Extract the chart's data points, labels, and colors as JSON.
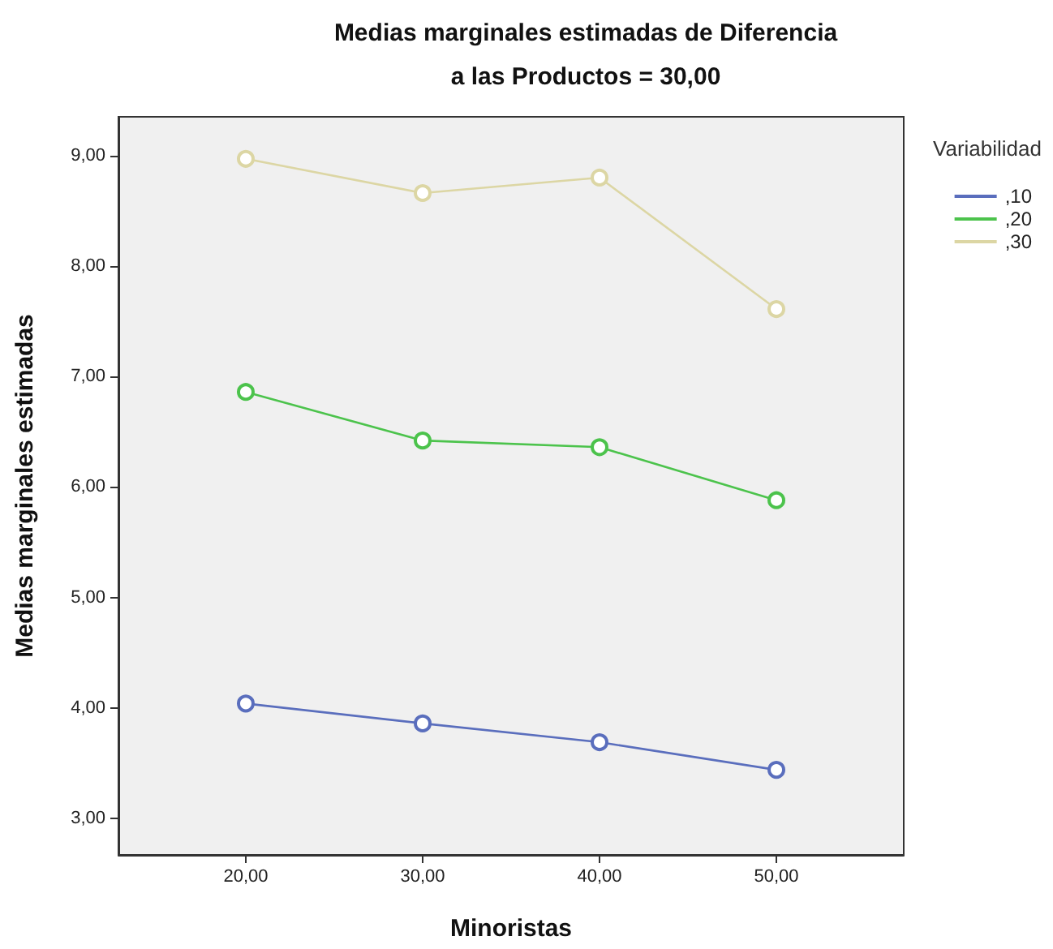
{
  "chart_data": {
    "type": "line",
    "title": "Medias marginales estimadas de Diferencia",
    "subtitle": "a las Productos = 30,00",
    "xlabel": "Minoristas",
    "ylabel": "Medias marginales estimadas",
    "legend_title": "Variabilidad",
    "x": [
      20,
      30,
      40,
      50
    ],
    "series": [
      {
        "name": ",10",
        "color": "#5a6ebd",
        "values": [
          4.04,
          3.86,
          3.69,
          3.44
        ]
      },
      {
        "name": ",20",
        "color": "#4cc34c",
        "values": [
          6.86,
          6.42,
          6.36,
          5.88
        ]
      },
      {
        "name": ",30",
        "color": "#dcd6a4",
        "values": [
          8.97,
          8.66,
          8.8,
          7.61
        ]
      }
    ],
    "xlim": [
      12.8,
      57.2
    ],
    "xticks": [
      {
        "value": 20,
        "label": "20,00"
      },
      {
        "value": 30,
        "label": "30,00"
      },
      {
        "value": 40,
        "label": "40,00"
      },
      {
        "value": 50,
        "label": "50,00"
      }
    ],
    "ylim": [
      2.67,
      9.35
    ],
    "yticks": [
      {
        "value": 3,
        "label": "3,00"
      },
      {
        "value": 4,
        "label": "4,00"
      },
      {
        "value": 5,
        "label": "5,00"
      },
      {
        "value": 6,
        "label": "6,00"
      },
      {
        "value": 7,
        "label": "7,00"
      },
      {
        "value": 8,
        "label": "8,00"
      },
      {
        "value": 9,
        "label": "9,00"
      }
    ],
    "grid": false,
    "legend": "right",
    "marker": "circle",
    "line_style": "solid"
  }
}
